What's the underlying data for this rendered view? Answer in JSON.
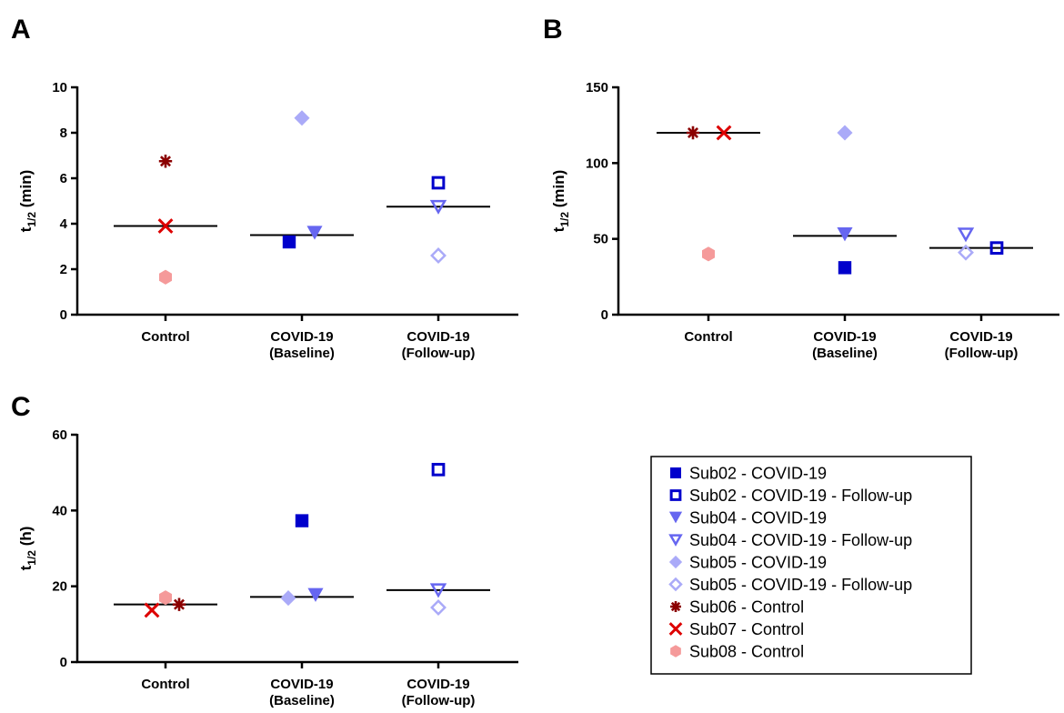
{
  "colors": {
    "sub02": "#0000cc",
    "sub04": "#6666f0",
    "sub05": "#aaaaf8",
    "sub06": "#8b0000",
    "sub07": "#dd0000",
    "sub08": "#f59a9a"
  },
  "legend": [
    {
      "label": "Sub02 - COVID-19",
      "marker": "square",
      "filled": true,
      "color": "#0000cc"
    },
    {
      "label": "Sub02 - COVID-19 - Follow-up",
      "marker": "square",
      "filled": false,
      "color": "#0000cc"
    },
    {
      "label": "Sub04 - COVID-19",
      "marker": "triangle-down",
      "filled": true,
      "color": "#6666f0"
    },
    {
      "label": "Sub04 - COVID-19 - Follow-up",
      "marker": "triangle-down",
      "filled": false,
      "color": "#6666f0"
    },
    {
      "label": "Sub05 - COVID-19",
      "marker": "diamond",
      "filled": true,
      "color": "#aaaaf8"
    },
    {
      "label": "Sub05 - COVID-19 - Follow-up",
      "marker": "diamond",
      "filled": false,
      "color": "#aaaaf8"
    },
    {
      "label": "Sub06 - Control",
      "marker": "asterisk",
      "filled": true,
      "color": "#8b0000"
    },
    {
      "label": "Sub07 - Control",
      "marker": "cross",
      "filled": true,
      "color": "#dd0000"
    },
    {
      "label": "Sub08 - Control",
      "marker": "hexagon",
      "filled": true,
      "color": "#f59a9a"
    }
  ],
  "chart_data": [
    {
      "panel": "A",
      "type": "scatter",
      "ylabel_main": "t",
      "ylabel_sub": "1/2",
      "ylabel_unit": " (min)",
      "ylim": [
        0,
        10
      ],
      "yticks": [
        0,
        2,
        4,
        6,
        8,
        10
      ],
      "categories": [
        [
          "Control"
        ],
        [
          "COVID-19",
          "(Baseline)"
        ],
        [
          "COVID-19",
          "(Follow-up)"
        ]
      ],
      "means": [
        3.9,
        3.5,
        4.75
      ],
      "points": [
        {
          "series": "Sub06 - Control",
          "cat": 0,
          "offset": 0,
          "y": 6.75
        },
        {
          "series": "Sub07 - Control",
          "cat": 0,
          "offset": 0,
          "y": 3.9
        },
        {
          "series": "Sub08 - Control",
          "cat": 0,
          "offset": 0,
          "y": 1.65
        },
        {
          "series": "Sub02 - COVID-19",
          "cat": 1,
          "offset": -1,
          "y": 3.2
        },
        {
          "series": "Sub04 - COVID-19",
          "cat": 1,
          "offset": 1,
          "y": 3.6
        },
        {
          "series": "Sub05 - COVID-19",
          "cat": 1,
          "offset": 0,
          "y": 8.65
        },
        {
          "series": "Sub02 - COVID-19 - Follow-up",
          "cat": 2,
          "offset": 0,
          "y": 5.8
        },
        {
          "series": "Sub04 - COVID-19 - Follow-up",
          "cat": 2,
          "offset": 0,
          "y": 4.75
        },
        {
          "series": "Sub05 - COVID-19 - Follow-up",
          "cat": 2,
          "offset": 0,
          "y": 2.6
        }
      ]
    },
    {
      "panel": "B",
      "type": "scatter",
      "ylabel_main": "t",
      "ylabel_sub": "1/2",
      "ylabel_unit": " (min)",
      "ylim": [
        0,
        150
      ],
      "yticks": [
        0,
        50,
        100,
        150
      ],
      "categories": [
        [
          "Control"
        ],
        [
          "COVID-19",
          "(Baseline)"
        ],
        [
          "COVID-19",
          "(Follow-up)"
        ]
      ],
      "means": [
        120,
        52,
        44
      ],
      "points": [
        {
          "series": "Sub06 - Control",
          "cat": 0,
          "offset": -1,
          "y": 120
        },
        {
          "series": "Sub07 - Control",
          "cat": 0,
          "offset": 1,
          "y": 120
        },
        {
          "series": "Sub08 - Control",
          "cat": 0,
          "offset": 0,
          "y": 40
        },
        {
          "series": "Sub02 - COVID-19",
          "cat": 1,
          "offset": 0,
          "y": 31
        },
        {
          "series": "Sub04 - COVID-19",
          "cat": 1,
          "offset": 0,
          "y": 53
        },
        {
          "series": "Sub05 - COVID-19",
          "cat": 1,
          "offset": 0,
          "y": 120
        },
        {
          "series": "Sub02 - COVID-19 - Follow-up",
          "cat": 2,
          "offset": 1,
          "y": 44
        },
        {
          "series": "Sub04 - COVID-19 - Follow-up",
          "cat": 2,
          "offset": -1,
          "y": 53
        },
        {
          "series": "Sub05 - COVID-19 - Follow-up",
          "cat": 2,
          "offset": -1,
          "y": 41
        }
      ]
    },
    {
      "panel": "C",
      "type": "scatter",
      "ylabel_main": "t",
      "ylabel_sub": "1/2",
      "ylabel_unit": " (h)",
      "ylim": [
        0,
        60
      ],
      "yticks": [
        0,
        20,
        40,
        60
      ],
      "categories": [
        [
          "Control"
        ],
        [
          "COVID-19",
          "(Baseline)"
        ],
        [
          "COVID-19",
          "(Follow-up)"
        ]
      ],
      "means": [
        15.2,
        17.2,
        19.0
      ],
      "points": [
        {
          "series": "Sub06 - Control",
          "cat": 0,
          "offset": 1,
          "y": 15.2
        },
        {
          "series": "Sub07 - Control",
          "cat": 0,
          "offset": -1,
          "y": 13.7
        },
        {
          "series": "Sub08 - Control",
          "cat": 0,
          "offset": 0,
          "y": 17.0
        },
        {
          "series": "Sub02 - COVID-19",
          "cat": 1,
          "offset": 0,
          "y": 37.3
        },
        {
          "series": "Sub04 - COVID-19",
          "cat": 1,
          "offset": 1,
          "y": 17.7
        },
        {
          "series": "Sub05 - COVID-19",
          "cat": 1,
          "offset": -1,
          "y": 16.9
        },
        {
          "series": "Sub02 - COVID-19 - Follow-up",
          "cat": 2,
          "offset": 0,
          "y": 50.8
        },
        {
          "series": "Sub04 - COVID-19 - Follow-up",
          "cat": 2,
          "offset": 0,
          "y": 19.0
        },
        {
          "series": "Sub05 - COVID-19 - Follow-up",
          "cat": 2,
          "offset": 0,
          "y": 14.4
        }
      ]
    }
  ]
}
